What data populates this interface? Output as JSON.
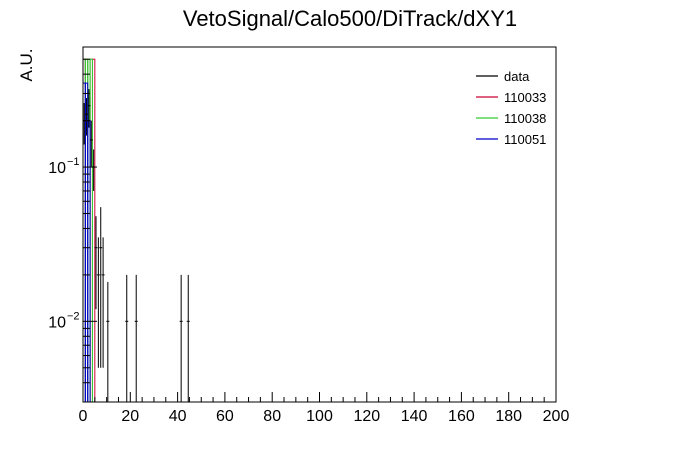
{
  "chart_data": {
    "type": "histogram",
    "title": "VetoSignal/Calo500/DiTrack/dXY1",
    "ylabel": "A.U.",
    "xlabel": "",
    "xlim": [
      0,
      200
    ],
    "ylim": [
      0.003,
      0.6
    ],
    "yscale": "log",
    "grid": false,
    "legend_position": "top-right",
    "x_ticks": [
      {
        "value": 0,
        "label": "0"
      },
      {
        "value": 20,
        "label": "20"
      },
      {
        "value": 40,
        "label": "40"
      },
      {
        "value": 60,
        "label": "60"
      },
      {
        "value": 80,
        "label": "80"
      },
      {
        "value": 100,
        "label": "100"
      },
      {
        "value": 120,
        "label": "120"
      },
      {
        "value": 140,
        "label": "140"
      },
      {
        "value": 160,
        "label": "160"
      },
      {
        "value": 180,
        "label": "180"
      },
      {
        "value": 200,
        "label": "200"
      }
    ],
    "y_major_ticks": [
      {
        "value": 0.01,
        "label_base": "10",
        "label_exp": "−2"
      },
      {
        "value": 0.1,
        "label_base": "10",
        "label_exp": "−1"
      }
    ],
    "series": [
      {
        "name": "data",
        "color": "#000000",
        "style": "points",
        "points": [
          {
            "x": 0.5,
            "y": 0.2,
            "err": 0.06
          },
          {
            "x": 1.5,
            "y": 0.22,
            "err": 0.06
          },
          {
            "x": 2.5,
            "y": 0.25,
            "err": 0.07
          },
          {
            "x": 3.5,
            "y": 0.15,
            "err": 0.05
          },
          {
            "x": 4.5,
            "y": 0.1,
            "err": 0.03
          },
          {
            "x": 5.5,
            "y": 0.03,
            "err": 0.018
          },
          {
            "x": 6.5,
            "y": 0.02,
            "err": 0.015
          },
          {
            "x": 7.5,
            "y": 0.03,
            "err": 0.025
          },
          {
            "x": 8.5,
            "y": 0.02,
            "err": 0.015
          },
          {
            "x": 10.5,
            "y": 0.01,
            "err": 0.008
          },
          {
            "x": 18.5,
            "y": 0.01,
            "err": 0.01
          },
          {
            "x": 22.5,
            "y": 0.01,
            "err": 0.01
          },
          {
            "x": 41.5,
            "y": 0.01,
            "err": 0.01
          },
          {
            "x": 44.5,
            "y": 0.01,
            "err": 0.01
          }
        ]
      },
      {
        "name": "110033",
        "color": "#cc0033",
        "style": "hist",
        "bins": [
          {
            "x0": 0,
            "x1": 1,
            "y": 0.5
          },
          {
            "x0": 1,
            "x1": 2,
            "y": 0.5
          },
          {
            "x0": 2,
            "x1": 3,
            "y": 0.28
          },
          {
            "x0": 3,
            "x1": 4,
            "y": 0.5
          },
          {
            "x0": 4,
            "x1": 5,
            "y": 0.5
          }
        ]
      },
      {
        "name": "110038",
        "color": "#33cc33",
        "style": "hist",
        "bins": [
          {
            "x0": 0,
            "x1": 1,
            "y": 0.5
          },
          {
            "x0": 1,
            "x1": 2,
            "y": 0.5
          },
          {
            "x0": 2,
            "x1": 3,
            "y": 0.5
          },
          {
            "x0": 3,
            "x1": 4,
            "y": 0.5
          }
        ]
      },
      {
        "name": "110051",
        "color": "#0000cc",
        "style": "hist",
        "bins": [
          {
            "x0": 0,
            "x1": 1,
            "y": 0.35
          },
          {
            "x0": 1,
            "x1": 2,
            "y": 0.35
          },
          {
            "x0": 2,
            "x1": 3,
            "y": 0.2
          }
        ]
      }
    ]
  }
}
